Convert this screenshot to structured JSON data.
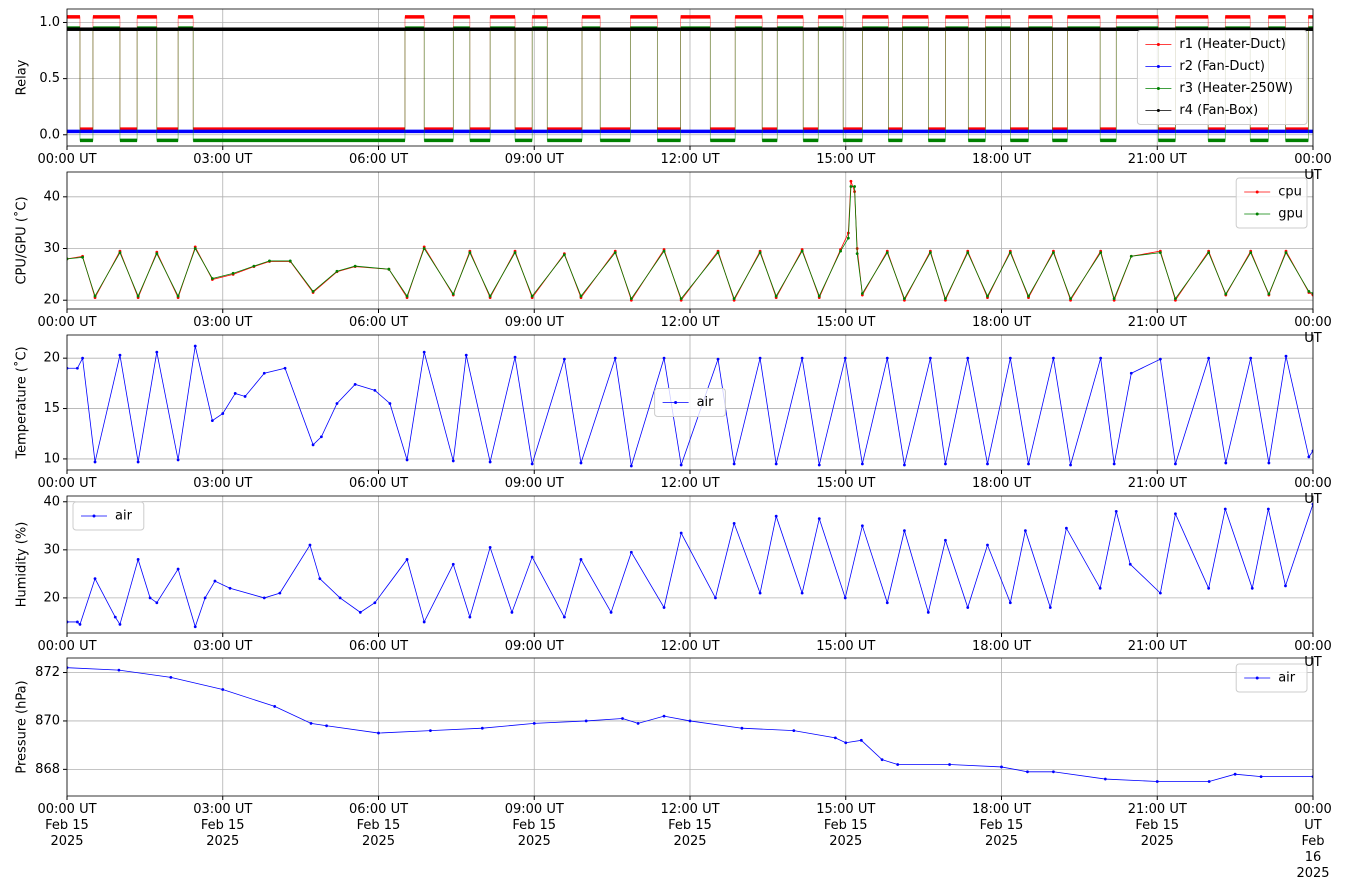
{
  "chart_data": [
    {
      "type": "step",
      "ylabel": "Relay",
      "grid": true,
      "legend": "center right",
      "xlim": [
        0,
        24
      ],
      "ylim": [
        -0.1,
        1.12
      ],
      "yticks": [
        {
          "value": 0,
          "label": "0.0"
        },
        {
          "value": 0.5,
          "label": "0.5"
        },
        {
          "value": 1,
          "label": "1.0"
        }
      ],
      "xticks": [
        {
          "value": 0,
          "label": "00:00 UT"
        },
        {
          "value": 3,
          "label": "03:00 UT"
        },
        {
          "value": 6,
          "label": "06:00 UT"
        },
        {
          "value": 9,
          "label": "09:00 UT"
        },
        {
          "value": 12,
          "label": "12:00 UT"
        },
        {
          "value": 15,
          "label": "15:00 UT"
        },
        {
          "value": 18,
          "label": "18:00 UT"
        },
        {
          "value": 21,
          "label": "21:00 UT"
        },
        {
          "value": 24,
          "label": "00:00 UT"
        }
      ],
      "x": [
        0,
        0.25,
        0.5,
        1.02,
        1.35,
        1.73,
        2.14,
        2.43,
        6.51,
        6.88,
        7.44,
        7.76,
        8.15,
        8.63,
        8.96,
        9.25,
        9.92,
        10.27,
        10.85,
        11.37,
        11.82,
        12.39,
        12.87,
        13.39,
        13.68,
        14.18,
        14.47,
        14.95,
        15.32,
        15.82,
        16.09,
        16.59,
        16.92,
        17.36,
        17.69,
        18.17,
        18.52,
        18.98,
        19.27,
        19.9,
        20.21,
        21.02,
        21.35,
        21.98,
        22.31,
        22.79,
        23.14,
        23.47,
        23.91,
        24
      ],
      "series": [
        {
          "name": "r1 (Heater-Duct)",
          "color": "#ff0000",
          "values": [
            1.05,
            0.05,
            1.05,
            0.05,
            1.05,
            0.05,
            1.05,
            0.05,
            1.05,
            0.05,
            1.05,
            0.05,
            1.05,
            0.05,
            1.05,
            0.05,
            1.05,
            0.05,
            1.05,
            0.05,
            1.05,
            0.05,
            1.05,
            0.05,
            1.05,
            0.05,
            1.05,
            0.05,
            1.05,
            0.05,
            1.05,
            0.05,
            1.05,
            0.05,
            1.05,
            0.05,
            1.05,
            0.05,
            1.05,
            0.05,
            1.05,
            0.05,
            1.05,
            0.05,
            1.05,
            0.05,
            1.05,
            0.05,
            1.05,
            1.05
          ]
        },
        {
          "name": "r2 (Fan-Duct)",
          "color": "#0000ff",
          "values": [
            0.03,
            0.03,
            0.03,
            0.03,
            0.03,
            0.03,
            0.03,
            0.03,
            0.03,
            0.03,
            0.03,
            0.03,
            0.03,
            0.03,
            0.03,
            0.03,
            0.03,
            0.03,
            0.03,
            0.03,
            0.03,
            0.03,
            0.03,
            0.03,
            0.03,
            0.03,
            0.03,
            0.03,
            0.03,
            0.03,
            0.03,
            0.03,
            0.03,
            0.03,
            0.03,
            0.03,
            0.03,
            0.03,
            0.03,
            0.03,
            0.03,
            0.03,
            0.03,
            0.03,
            0.03,
            0.03,
            0.03,
            0.03,
            0.03,
            0.03
          ]
        },
        {
          "name": "r3 (Heater-250W)",
          "color": "#008000",
          "values": [
            0.95,
            -0.05,
            0.95,
            -0.05,
            0.95,
            -0.05,
            0.95,
            -0.05,
            0.95,
            -0.05,
            0.95,
            -0.05,
            0.95,
            -0.05,
            0.95,
            -0.05,
            0.95,
            -0.05,
            0.95,
            -0.05,
            0.95,
            -0.05,
            0.95,
            -0.05,
            0.95,
            -0.05,
            0.95,
            -0.05,
            0.95,
            -0.05,
            0.95,
            -0.05,
            0.95,
            -0.05,
            0.95,
            -0.05,
            0.95,
            -0.05,
            0.95,
            -0.05,
            0.95,
            -0.05,
            0.95,
            -0.05,
            0.95,
            -0.05,
            0.95,
            -0.05,
            0.95,
            0.95
          ]
        },
        {
          "name": "r4 (Fan-Box)",
          "color": "#000000",
          "values": [
            0.94,
            0.94,
            0.94,
            0.94,
            0.94,
            0.94,
            0.94,
            0.94,
            0.94,
            0.94,
            0.94,
            0.94,
            0.94,
            0.94,
            0.94,
            0.94,
            0.94,
            0.94,
            0.94,
            0.94,
            0.94,
            0.94,
            0.94,
            0.94,
            0.94,
            0.94,
            0.94,
            0.94,
            0.94,
            0.94,
            0.94,
            0.94,
            0.94,
            0.94,
            0.94,
            0.94,
            0.94,
            0.94,
            0.94,
            0.94,
            0.94,
            0.94,
            0.94,
            0.94,
            0.94,
            0.94,
            0.94,
            0.94,
            0.94,
            0.94
          ]
        }
      ]
    },
    {
      "type": "line",
      "ylabel": "CPU/GPU (˚C)",
      "grid": true,
      "legend": "upper right",
      "xlim": [
        0,
        24
      ],
      "ylim": [
        18.3,
        44.8
      ],
      "yticks": [
        20,
        30,
        40
      ],
      "xticks": [
        {
          "value": 0,
          "label": "00:00 UT"
        },
        {
          "value": 3,
          "label": "03:00 UT"
        },
        {
          "value": 6,
          "label": "06:00 UT"
        },
        {
          "value": 9,
          "label": "09:00 UT"
        },
        {
          "value": 12,
          "label": "12:00 UT"
        },
        {
          "value": 15,
          "label": "15:00 UT"
        },
        {
          "value": 18,
          "label": "18:00 UT"
        },
        {
          "value": 21,
          "label": "21:00 UT"
        },
        {
          "value": 24,
          "label": "00:00 UT"
        }
      ],
      "x": [
        0,
        0.3,
        0.54,
        1.02,
        1.37,
        1.73,
        2.14,
        2.47,
        2.8,
        3.2,
        3.6,
        3.9,
        4.3,
        4.74,
        5.2,
        5.55,
        6.2,
        6.55,
        6.88,
        7.44,
        7.76,
        8.15,
        8.63,
        8.96,
        9.58,
        9.9,
        10.56,
        10.87,
        11.5,
        11.83,
        12.54,
        12.85,
        13.35,
        13.66,
        14.16,
        14.49,
        14.9,
        15.05,
        15.1,
        15.17,
        15.22,
        15.32,
        15.8,
        16.13,
        16.63,
        16.92,
        17.35,
        17.73,
        18.17,
        18.52,
        19.0,
        19.33,
        19.91,
        20.17,
        20.5,
        21.06,
        21.35,
        21.99,
        22.32,
        22.8,
        23.15,
        23.48,
        23.92,
        24
      ],
      "series": [
        {
          "name": "cpu",
          "color": "#ff0000",
          "values": [
            28,
            28.5,
            20.5,
            29.5,
            20.5,
            29.3,
            20.5,
            30.3,
            24,
            25,
            26.5,
            27.5,
            27.5,
            21.5,
            25.5,
            26.5,
            26,
            20.5,
            30.3,
            21,
            29.5,
            20.5,
            29.5,
            20.5,
            29,
            20.5,
            29.5,
            20,
            29.8,
            20,
            29.5,
            20,
            29.5,
            20.5,
            29.8,
            20.5,
            29.8,
            33,
            43,
            41,
            30,
            21,
            29.5,
            20,
            29.5,
            20,
            29.5,
            20.5,
            29.5,
            20.5,
            29.5,
            20,
            29.5,
            20,
            28.5,
            29.5,
            20,
            29.5,
            21,
            29.5,
            21,
            29.5,
            21.5,
            21
          ]
        },
        {
          "name": "gpu",
          "color": "#008000",
          "values": [
            28,
            28.3,
            20.8,
            29.2,
            20.8,
            29,
            20.8,
            30,
            24.2,
            25.2,
            26.6,
            27.6,
            27.6,
            21.7,
            25.6,
            26.6,
            26,
            20.8,
            30,
            21.2,
            29.2,
            20.8,
            29.2,
            20.8,
            28.8,
            20.8,
            29.2,
            20.3,
            29.5,
            20.3,
            29.2,
            20.3,
            29.2,
            20.8,
            29.5,
            20.8,
            29.5,
            32,
            42,
            42,
            29,
            21.3,
            29.2,
            20.3,
            29.2,
            20.3,
            29.2,
            20.8,
            29.2,
            20.8,
            29.2,
            20.3,
            29.2,
            20.3,
            28.5,
            29.2,
            20.3,
            29.2,
            21.2,
            29.2,
            21.2,
            29.2,
            21.7,
            21.3
          ]
        }
      ]
    },
    {
      "type": "line",
      "ylabel": "Temperature (˚C)",
      "grid": true,
      "legend": "center",
      "xlim": [
        0,
        24
      ],
      "ylim": [
        8.9,
        22.3
      ],
      "yticks": [
        10,
        15,
        20
      ],
      "xticks": [
        {
          "value": 0,
          "label": "00:00 UT"
        },
        {
          "value": 3,
          "label": "03:00 UT"
        },
        {
          "value": 6,
          "label": "06:00 UT"
        },
        {
          "value": 9,
          "label": "09:00 UT"
        },
        {
          "value": 12,
          "label": "12:00 UT"
        },
        {
          "value": 15,
          "label": "15:00 UT"
        },
        {
          "value": 18,
          "label": "18:00 UT"
        },
        {
          "value": 21,
          "label": "21:00 UT"
        },
        {
          "value": 24,
          "label": "00:00 UT"
        }
      ],
      "x": [
        0,
        0.2,
        0.3,
        0.54,
        1.02,
        1.37,
        1.73,
        2.14,
        2.47,
        2.8,
        3.0,
        3.24,
        3.43,
        3.8,
        4.2,
        4.74,
        4.9,
        5.2,
        5.55,
        5.93,
        6.22,
        6.55,
        6.88,
        7.44,
        7.69,
        8.15,
        8.63,
        8.96,
        9.58,
        9.9,
        10.56,
        10.87,
        11.5,
        11.83,
        12.54,
        12.85,
        13.35,
        13.66,
        14.16,
        14.49,
        14.99,
        15.32,
        15.8,
        16.13,
        16.63,
        16.92,
        17.35,
        17.73,
        18.17,
        18.52,
        19.0,
        19.33,
        19.91,
        20.17,
        20.5,
        21.06,
        21.35,
        21.99,
        22.32,
        22.8,
        23.15,
        23.48,
        23.92,
        24
      ],
      "series": [
        {
          "name": "air",
          "color": "#0000ff",
          "values": [
            19,
            19,
            20,
            9.7,
            20.3,
            9.7,
            20.6,
            9.9,
            21.2,
            13.8,
            14.5,
            16.5,
            16.2,
            18.5,
            19,
            11.4,
            12.2,
            15.5,
            17.4,
            16.8,
            15.5,
            9.9,
            20.6,
            9.8,
            20.3,
            9.7,
            20.1,
            9.5,
            19.9,
            9.6,
            20,
            9.3,
            20,
            9.4,
            19.9,
            9.5,
            20,
            9.5,
            20,
            9.4,
            20,
            9.5,
            20,
            9.4,
            20,
            9.5,
            20,
            9.5,
            20,
            9.5,
            20,
            9.4,
            20,
            9.5,
            18.5,
            19.9,
            9.5,
            20,
            9.6,
            20,
            9.6,
            20.2,
            10.2,
            10.8
          ]
        }
      ]
    },
    {
      "type": "line",
      "ylabel": "Humidity (%)",
      "grid": true,
      "legend": "upper left",
      "xlim": [
        0,
        24
      ],
      "ylim": [
        12.7,
        41.2
      ],
      "yticks": [
        20,
        30,
        40
      ],
      "xticks": [
        {
          "value": 0,
          "label": "00:00 UT"
        },
        {
          "value": 3,
          "label": "03:00 UT"
        },
        {
          "value": 6,
          "label": "06:00 UT"
        },
        {
          "value": 9,
          "label": "09:00 UT"
        },
        {
          "value": 12,
          "label": "12:00 UT"
        },
        {
          "value": 15,
          "label": "15:00 UT"
        },
        {
          "value": 18,
          "label": "18:00 UT"
        },
        {
          "value": 21,
          "label": "21:00 UT"
        },
        {
          "value": 24,
          "label": "00:00 UT"
        }
      ],
      "x": [
        0,
        0.2,
        0.25,
        0.54,
        0.93,
        1.02,
        1.37,
        1.6,
        1.73,
        2.14,
        2.47,
        2.66,
        2.85,
        3.14,
        3.8,
        4.1,
        4.68,
        4.87,
        5.26,
        5.65,
        5.93,
        6.55,
        6.88,
        7.44,
        7.76,
        8.15,
        8.57,
        8.96,
        9.58,
        9.9,
        10.48,
        10.87,
        11.5,
        11.83,
        12.49,
        12.85,
        13.35,
        13.66,
        14.16,
        14.49,
        14.99,
        15.32,
        15.8,
        16.13,
        16.59,
        16.92,
        17.35,
        17.73,
        18.17,
        18.46,
        18.94,
        19.25,
        19.9,
        20.21,
        20.48,
        21.06,
        21.35,
        21.99,
        22.31,
        22.83,
        23.14,
        23.47,
        24
      ],
      "series": [
        {
          "name": "air",
          "color": "#0000ff",
          "values": [
            15,
            15,
            14.5,
            24,
            16,
            14.5,
            28,
            20,
            19,
            26,
            14,
            20,
            23.5,
            22,
            20,
            21,
            31,
            24,
            20,
            17,
            19,
            28,
            15,
            27,
            16,
            30.5,
            17,
            28.5,
            16,
            28,
            17,
            29.5,
            18,
            33.5,
            20,
            35.5,
            21,
            37,
            21,
            36.5,
            20,
            35,
            19,
            34,
            17,
            32,
            18,
            31,
            19,
            34,
            18,
            34.5,
            22,
            38,
            27,
            21,
            37.5,
            22,
            38.5,
            22,
            38.5,
            22.5,
            39.5
          ]
        }
      ]
    },
    {
      "type": "line",
      "ylabel": "Pressure (hPa)",
      "grid": true,
      "legend": "upper right",
      "xlim": [
        0,
        24
      ],
      "ylim": [
        866.9,
        872.6
      ],
      "yticks": [
        868,
        870,
        872
      ],
      "xticks": [
        {
          "value": 0,
          "label": "00:00 UT\nFeb 15\n2025"
        },
        {
          "value": 3,
          "label": "03:00 UT\nFeb 15\n2025"
        },
        {
          "value": 6,
          "label": "06:00 UT\nFeb 15\n2025"
        },
        {
          "value": 9,
          "label": "09:00 UT\nFeb 15\n2025"
        },
        {
          "value": 12,
          "label": "12:00 UT\nFeb 15\n2025"
        },
        {
          "value": 15,
          "label": "15:00 UT\nFeb 15\n2025"
        },
        {
          "value": 18,
          "label": "18:00 UT\nFeb 15\n2025"
        },
        {
          "value": 21,
          "label": "21:00 UT\nFeb 15\n2025"
        },
        {
          "value": 24,
          "label": "00:00 UT\nFeb 16\n2025"
        }
      ],
      "x": [
        0,
        1,
        2,
        3,
        4,
        4.7,
        5,
        6,
        7,
        8,
        9,
        10,
        10.7,
        11,
        11.5,
        12,
        13,
        14,
        14.8,
        15,
        15.3,
        15.7,
        16,
        17,
        18,
        18.5,
        19,
        20,
        21,
        22,
        22.5,
        23,
        24
      ],
      "series": [
        {
          "name": "air",
          "color": "#0000ff",
          "values": [
            872.2,
            872.1,
            871.8,
            871.3,
            870.6,
            869.9,
            869.8,
            869.5,
            869.6,
            869.7,
            869.9,
            870.0,
            870.1,
            869.9,
            870.2,
            870.0,
            869.7,
            869.6,
            869.3,
            869.1,
            869.2,
            868.4,
            868.2,
            868.2,
            868.1,
            867.9,
            867.9,
            867.6,
            867.5,
            867.5,
            867.8,
            867.7,
            867.7
          ]
        }
      ]
    }
  ]
}
